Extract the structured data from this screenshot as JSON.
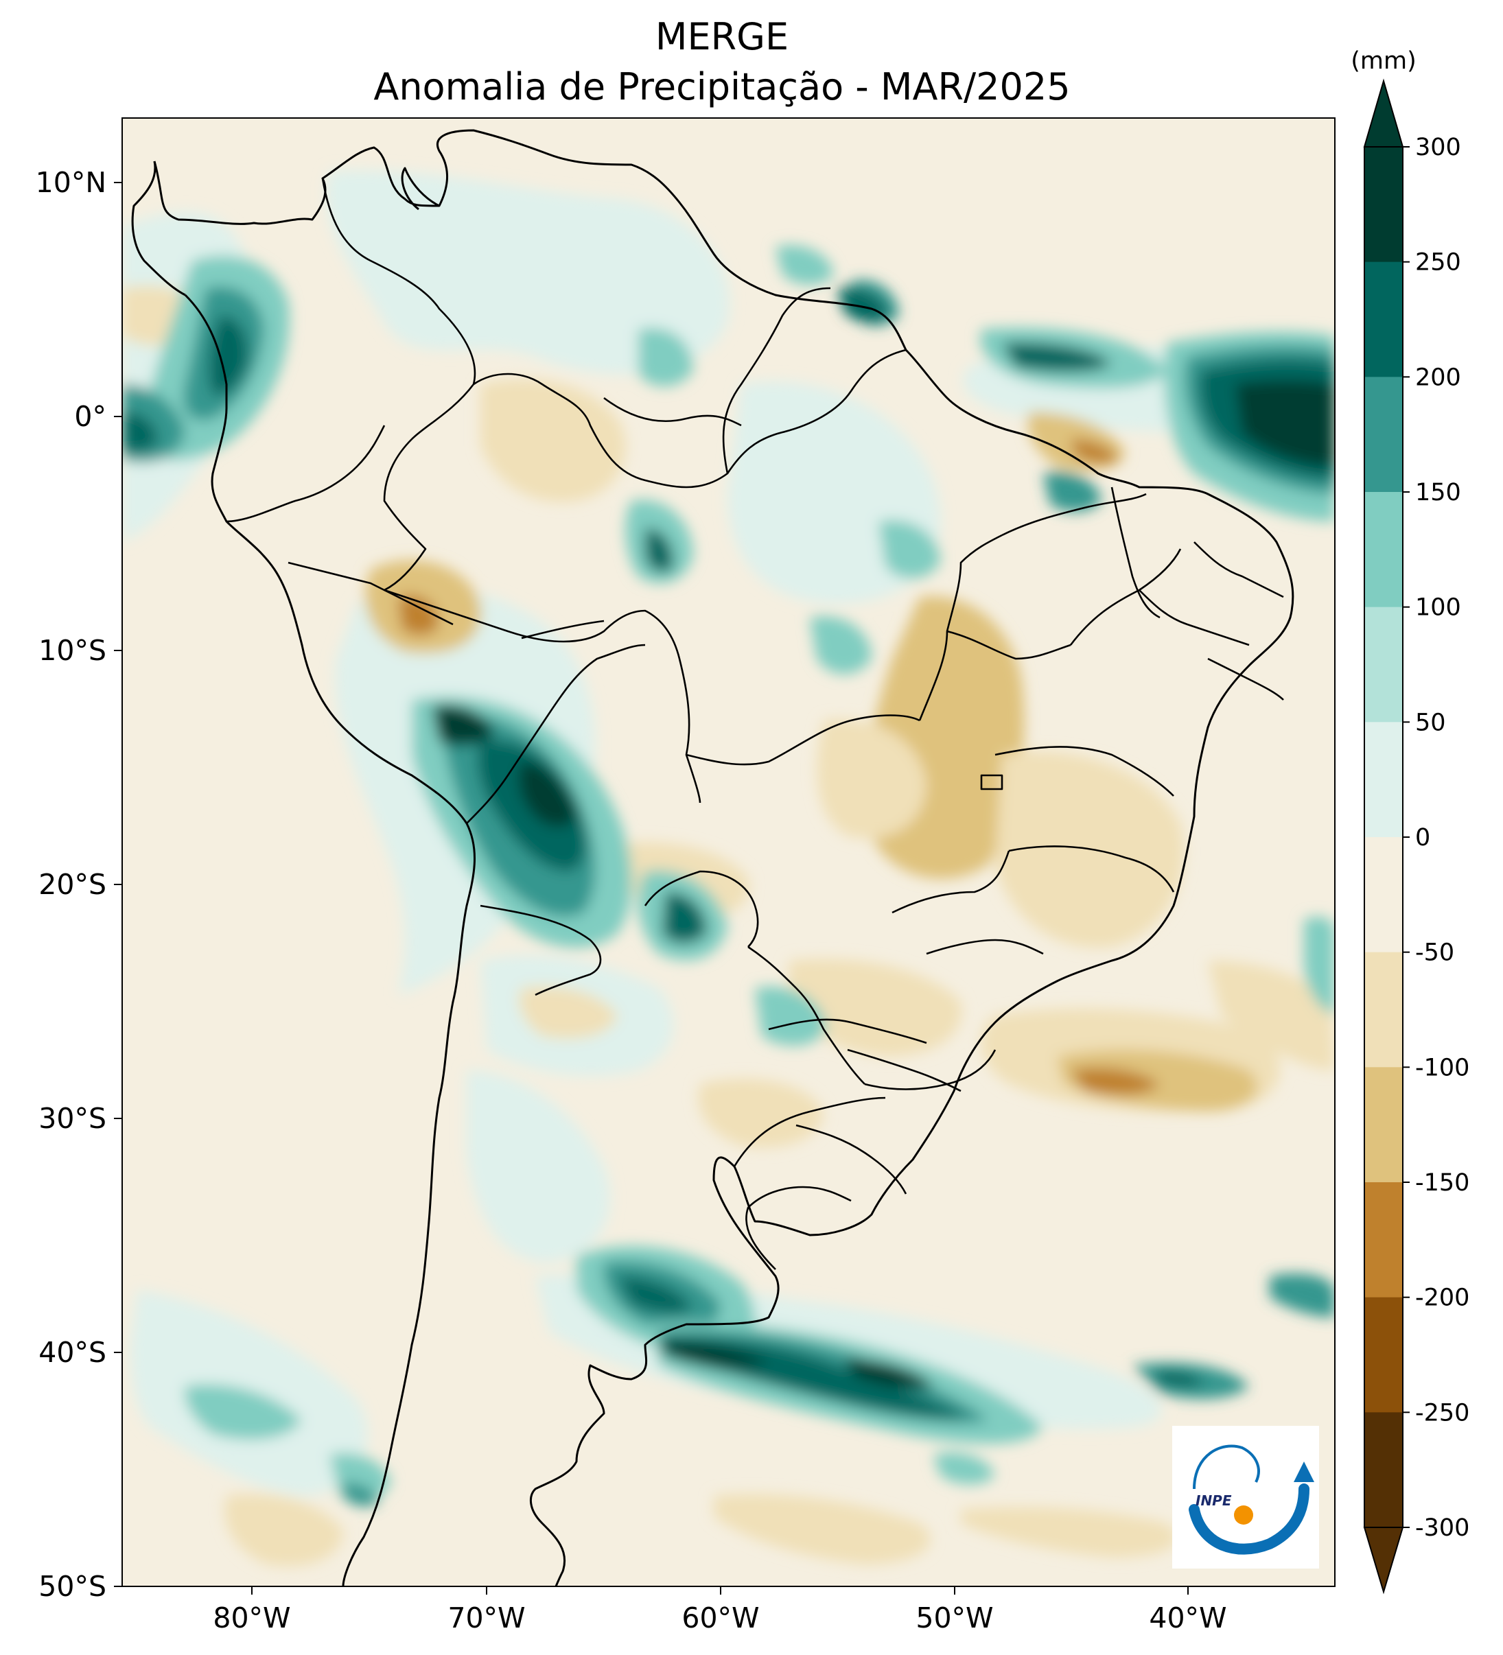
{
  "map": {
    "title": "MERGE",
    "subtitle": "Anomalia de Precipitação - MAR/2025",
    "units_label": "(mm)",
    "lon_ticks": [
      "80°W",
      "70°W",
      "60°W",
      "50°W",
      "40°W"
    ],
    "lat_ticks": [
      "10°N",
      "0°",
      "10°S",
      "20°S",
      "30°S",
      "40°S",
      "50°S"
    ],
    "colorbar": {
      "levels": [
        "300",
        "250",
        "200",
        "150",
        "100",
        "50",
        "0",
        "-50",
        "-100",
        "-150",
        "-200",
        "-250",
        "-300"
      ],
      "colors": [
        "#003c30",
        "#01665e",
        "#35978f",
        "#80cdc1",
        "#b3e2d9",
        "#dff1ec",
        "#f5efe0",
        "#f0e0b8",
        "#dfc27d",
        "#bf812d",
        "#8c510a",
        "#543005"
      ],
      "extend_top_color": "#003c30",
      "extend_bottom_color": "#543005"
    },
    "logo": {
      "text": "INPE",
      "colors": {
        "arc": "#0a6fb5",
        "dot": "#f39200"
      }
    }
  }
}
